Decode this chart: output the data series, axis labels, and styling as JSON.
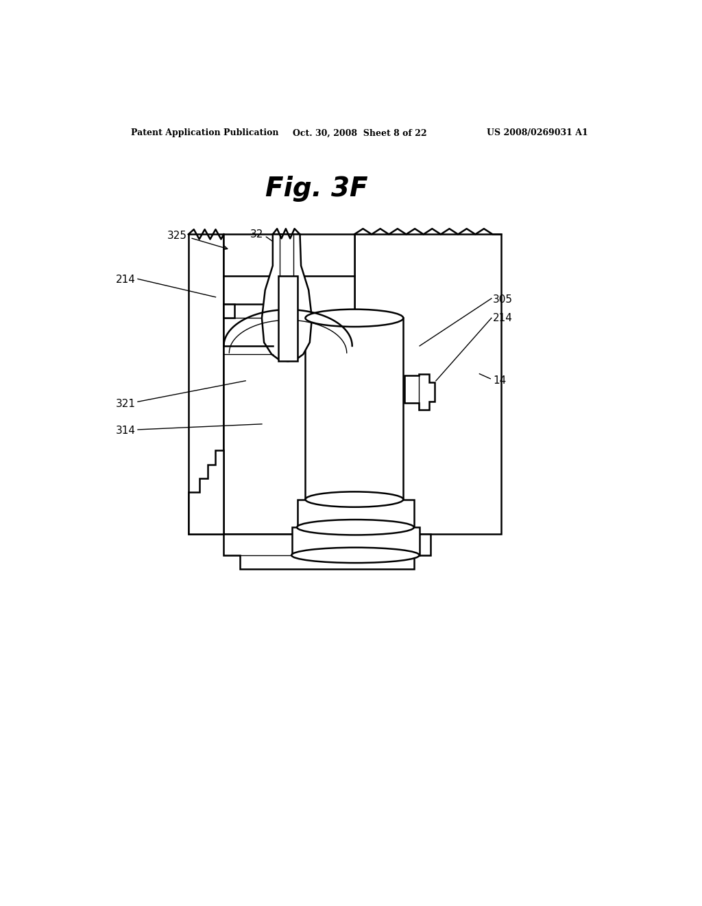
{
  "bg_color": "#ffffff",
  "header_left": "Patent Application Publication",
  "header_center": "Oct. 30, 2008  Sheet 8 of 22",
  "header_right": "US 2008/0269031 A1",
  "fig_label": "Fig. 3F",
  "line_color": "#000000",
  "lw_main": 1.8,
  "lw_thin": 1.0,
  "label_fontsize": 11,
  "header_fontsize": 9,
  "fig_label_fontsize": 28
}
